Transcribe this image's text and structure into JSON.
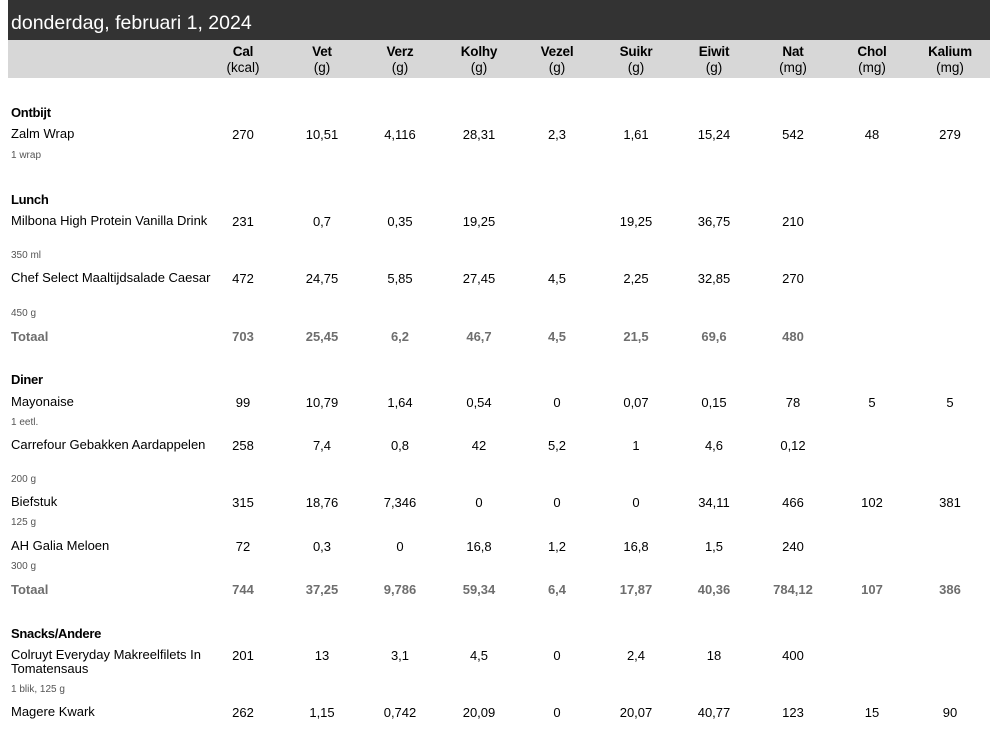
{
  "date": "donderdag, februari 1, 2024",
  "columns": [
    {
      "name": "Cal",
      "unit": "(kcal)"
    },
    {
      "name": "Vet",
      "unit": "(g)"
    },
    {
      "name": "Verz",
      "unit": "(g)"
    },
    {
      "name": "Kolhy",
      "unit": "(g)"
    },
    {
      "name": "Vezel",
      "unit": "(g)"
    },
    {
      "name": "Suikr",
      "unit": "(g)"
    },
    {
      "name": "Eiwit",
      "unit": "(g)"
    },
    {
      "name": "Nat",
      "unit": "(mg)"
    },
    {
      "name": "Chol",
      "unit": "(mg)"
    },
    {
      "name": "Kalium",
      "unit": "(mg)"
    }
  ],
  "sections": [
    {
      "title": "Ontbijt",
      "items": [
        {
          "name": "Zalm Wrap",
          "portion": "1 wrap",
          "values": [
            "270",
            "10,51",
            "4,116",
            "28,31",
            "2,3",
            "1,61",
            "15,24",
            "542",
            "48",
            "279"
          ]
        }
      ]
    },
    {
      "title": "Lunch",
      "items": [
        {
          "name": "Milbona High Protein Vanilla Drink",
          "portion": "350 ml",
          "values": [
            "231",
            "0,7",
            "0,35",
            "19,25",
            "",
            "19,25",
            "36,75",
            "210",
            "",
            ""
          ]
        },
        {
          "name": "Chef Select Maaltijdsalade Caesar",
          "portion": "450 g",
          "values": [
            "472",
            "24,75",
            "5,85",
            "27,45",
            "4,5",
            "2,25",
            "32,85",
            "270",
            "",
            ""
          ]
        }
      ],
      "total": {
        "label": "Totaal",
        "values": [
          "703",
          "25,45",
          "6,2",
          "46,7",
          "4,5",
          "21,5",
          "69,6",
          "480",
          "",
          ""
        ]
      }
    },
    {
      "title": "Diner",
      "items": [
        {
          "name": "Mayonaise",
          "portion": "1 eetl.",
          "values": [
            "99",
            "10,79",
            "1,64",
            "0,54",
            "0",
            "0,07",
            "0,15",
            "78",
            "5",
            "5"
          ]
        },
        {
          "name": "Carrefour Gebakken Aardappelen",
          "portion": "200 g",
          "values": [
            "258",
            "7,4",
            "0,8",
            "42",
            "5,2",
            "1",
            "4,6",
            "0,12",
            "",
            ""
          ]
        },
        {
          "name": "Biefstuk",
          "portion": "125 g",
          "values": [
            "315",
            "18,76",
            "7,346",
            "0",
            "0",
            "0",
            "34,11",
            "466",
            "102",
            "381"
          ]
        },
        {
          "name": "AH Galia Meloen",
          "portion": "300 g",
          "values": [
            "72",
            "0,3",
            "0",
            "16,8",
            "1,2",
            "16,8",
            "1,5",
            "240",
            "",
            ""
          ]
        }
      ],
      "total": {
        "label": "Totaal",
        "values": [
          "744",
          "37,25",
          "9,786",
          "59,34",
          "6,4",
          "17,87",
          "40,36",
          "784,12",
          "107",
          "386"
        ]
      }
    },
    {
      "title": "Snacks/Andere",
      "items": [
        {
          "name": "Colruyt Everyday Makreelfilets In Tomatensaus",
          "portion": "1 blik, 125 g",
          "values": [
            "201",
            "13",
            "3,1",
            "4,5",
            "0",
            "2,4",
            "18",
            "400",
            "",
            ""
          ]
        },
        {
          "name": "Magere Kwark",
          "portion": "",
          "values": [
            "262",
            "1,15",
            "0,742",
            "20,09",
            "0",
            "20,07",
            "40,77",
            "123",
            "15",
            "90"
          ]
        }
      ]
    }
  ]
}
